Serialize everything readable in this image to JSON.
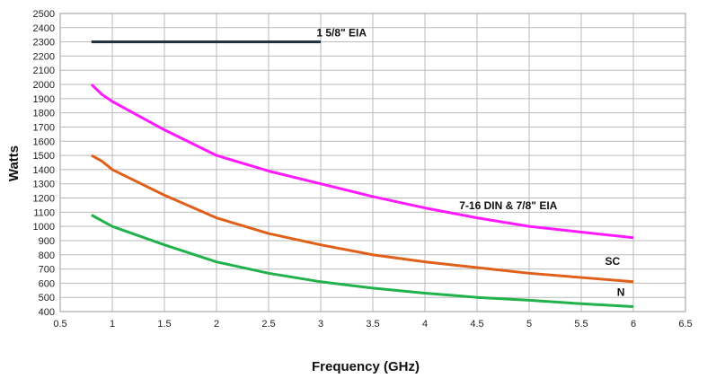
{
  "chart_data": {
    "type": "line",
    "xlabel": "Frequency (GHz)",
    "ylabel": "Watts",
    "xlim": [
      0.5,
      6.5
    ],
    "ylim": [
      400,
      2500
    ],
    "xticks": [
      "0.5",
      "1",
      "1.5",
      "2",
      "2.5",
      "3",
      "3.5",
      "4",
      "4.5",
      "5",
      "5.5",
      "6",
      "6.5"
    ],
    "yticks": [
      "400",
      "500",
      "600",
      "700",
      "800",
      "900",
      "1000",
      "1100",
      "1200",
      "1300",
      "1400",
      "1500",
      "1600",
      "1700",
      "1800",
      "1900",
      "2000",
      "2100",
      "2200",
      "2300",
      "2400",
      "2500"
    ],
    "grid": true,
    "series": [
      {
        "name": "1 5/8\" EIA",
        "color": "#1f2d3d",
        "x": [
          0.8,
          3.0
        ],
        "y": [
          2300,
          2300
        ]
      },
      {
        "name": "7-16 DIN & 7/8\" EIA",
        "color": "#ff1aff",
        "x": [
          0.8,
          0.9,
          1.0,
          1.5,
          2.0,
          2.5,
          3.0,
          3.5,
          4.0,
          4.5,
          5.0,
          5.5,
          6.0
        ],
        "y": [
          2000,
          1930,
          1880,
          1680,
          1500,
          1390,
          1300,
          1210,
          1130,
          1060,
          1000,
          960,
          920
        ]
      },
      {
        "name": "SC",
        "color": "#e0601a",
        "x": [
          0.8,
          0.9,
          1.0,
          1.5,
          2.0,
          2.5,
          3.0,
          3.5,
          4.0,
          4.5,
          5.0,
          5.5,
          6.0
        ],
        "y": [
          1500,
          1460,
          1400,
          1220,
          1060,
          950,
          870,
          800,
          750,
          710,
          670,
          640,
          610
        ]
      },
      {
        "name": "N",
        "color": "#22b24c",
        "x": [
          0.8,
          0.9,
          1.0,
          1.5,
          2.0,
          2.5,
          3.0,
          3.5,
          4.0,
          4.5,
          5.0,
          5.5,
          6.0
        ],
        "y": [
          1080,
          1040,
          1000,
          870,
          750,
          670,
          610,
          565,
          530,
          500,
          480,
          455,
          435
        ]
      }
    ],
    "annotations": [
      {
        "text": "1 5/8\" EIA",
        "x": 3.2,
        "y": 2340
      },
      {
        "text": "7-16 DIN & 7/8\" EIA",
        "x": 4.8,
        "y": 1120
      },
      {
        "text": "SC",
        "x": 5.8,
        "y": 730
      },
      {
        "text": "N",
        "x": 5.88,
        "y": 510
      }
    ]
  }
}
